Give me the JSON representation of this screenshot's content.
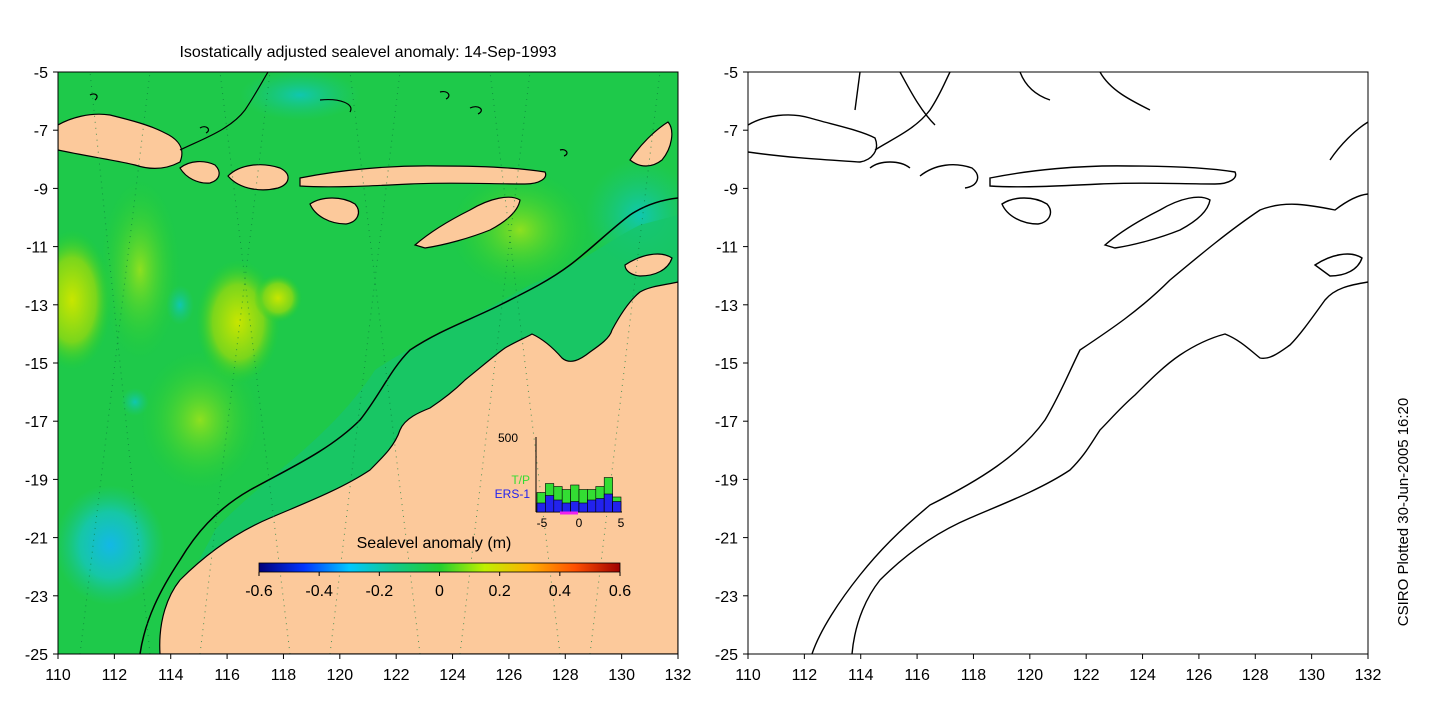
{
  "title": "Isostatically adjusted sealevel anomaly: 14-Sep-1993",
  "credit": "CSIRO Plotted 30-Jun-2005 16:20",
  "map": {
    "lon_range": [
      110,
      132
    ],
    "lat_range": [
      -25,
      -5
    ],
    "x_ticks": [
      "110",
      "112",
      "114",
      "116",
      "118",
      "120",
      "122",
      "124",
      "126",
      "128",
      "130",
      "132"
    ],
    "y_ticks": [
      "-5",
      "-7",
      "-9",
      "-11",
      "-13",
      "-15",
      "-17",
      "-19",
      "-21",
      "-23",
      "-25"
    ]
  },
  "colorbar": {
    "label": "Sealevel anomaly (m)",
    "range": [
      -0.6,
      0.6
    ],
    "ticks": [
      "-0.6",
      "-0.4",
      "-0.2",
      "0",
      "0.2",
      "0.4",
      "0.6"
    ]
  },
  "inset": {
    "ymax_label": "500",
    "x_ticks": [
      "-5",
      "0",
      "5"
    ],
    "series": [
      {
        "name": "T/P",
        "color": "#33dd33",
        "values": [
          130,
          190,
          170,
          150,
          180,
          150,
          150,
          170,
          230,
          100
        ]
      },
      {
        "name": "ERS-1",
        "color": "#2222ee",
        "values": [
          60,
          110,
          80,
          60,
          70,
          60,
          80,
          90,
          120,
          70
        ]
      }
    ]
  },
  "colors": {
    "ocean": "#22c55e",
    "land": "#fcc99b",
    "coast": "#000000",
    "colorbar_stops": [
      "#00007a",
      "#0035ff",
      "#00c8ff",
      "#12c98a",
      "#22cf30",
      "#c0f000",
      "#ffb000",
      "#ff5000",
      "#a00000"
    ]
  }
}
